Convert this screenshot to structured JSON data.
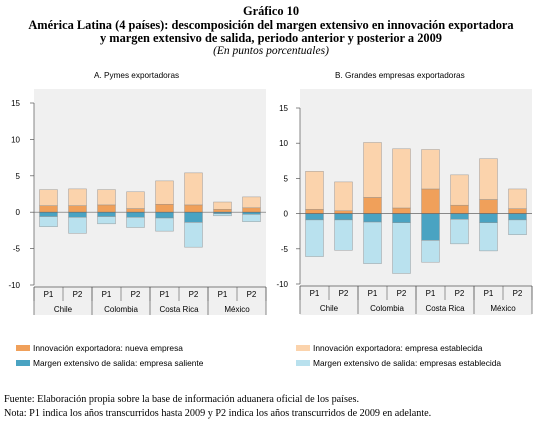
{
  "figure": {
    "heading": "Gráfico 10",
    "title_line1": "América Latina (4 países): descomposición del margen extensivo en innovación exportadora",
    "title_line2": "y margen extensivo de salida, periodo anterior y posterior a 2009",
    "units": "(En puntos porcentuales)",
    "source": "Fuente: Elaboración propia sobre la base de información aduanera oficial de los países.",
    "note": "Nota: P1 indica los años transcurridos hasta 2009 y P2 indica los años transcurridos de 2009 en adelante."
  },
  "colors": {
    "innovacion_nueva": "#f0a05a",
    "innovacion_establecida": "#fbd3ac",
    "margen_saliente": "#4aa3c2",
    "margen_establecida": "#b9e1ee",
    "panel_bg": "#f0f0f0"
  },
  "legend": [
    {
      "label": "Innovación exportadora: nueva empresa",
      "color_key": "innovacion_nueva"
    },
    {
      "label": "Innovación exportadora: empresa establecida",
      "color_key": "innovacion_establecida"
    },
    {
      "label": "Margen extensivo de salida: empresa saliente",
      "color_key": "margen_saliente"
    },
    {
      "label": "Margen extensivo de salida: empresas establecida",
      "color_key": "margen_establecida"
    }
  ],
  "chart_data": [
    {
      "type": "bar",
      "stacked": true,
      "title": "A.    Pymes exportadoras",
      "ylim": [
        -10,
        15
      ],
      "yticks": [
        "15",
        "10",
        "5",
        "0",
        "-5",
        "-10"
      ],
      "categories": [
        "P1",
        "P2",
        "P1",
        "P2",
        "P1",
        "P2",
        "P1",
        "P2"
      ],
      "groups": [
        "Chile",
        "Colombia",
        "Costa Rica",
        "México"
      ],
      "series": [
        {
          "name": "Innovación exportadora: nueva empresa",
          "values": [
            0.9,
            0.9,
            1.0,
            0.5,
            1.1,
            1.0,
            0.4,
            0.6
          ]
        },
        {
          "name": "Innovación exportadora: empresa establecida",
          "values": [
            2.2,
            2.3,
            2.1,
            2.3,
            3.2,
            4.4,
            1.0,
            1.5
          ]
        },
        {
          "name": "Margen extensivo de salida: empresa saliente",
          "values": [
            -0.6,
            -0.7,
            -0.6,
            -0.7,
            -0.8,
            -1.4,
            -0.2,
            -0.3
          ]
        },
        {
          "name": "Margen extensivo de salida: empresas establecida",
          "values": [
            -1.4,
            -2.2,
            -1.0,
            -1.4,
            -1.8,
            -3.4,
            -0.3,
            -1.0
          ]
        }
      ]
    },
    {
      "type": "bar",
      "stacked": true,
      "title": "B.    Grandes empresas exportadoras",
      "ylim": [
        -10,
        15
      ],
      "yticks": [
        "15",
        "10",
        "5",
        "0",
        "-5",
        "-10"
      ],
      "categories": [
        "P1",
        "P2",
        "P1",
        "P2",
        "P1",
        "P2",
        "P1",
        "P2"
      ],
      "groups": [
        "Chile",
        "Colombia",
        "Costa Rica",
        "México"
      ],
      "series": [
        {
          "name": "Innovación exportadora: nueva empresa",
          "values": [
            0.6,
            0.4,
            2.3,
            0.8,
            3.5,
            1.2,
            2.0,
            0.7
          ]
        },
        {
          "name": "Innovación exportadora: empresa establecida",
          "values": [
            5.4,
            4.1,
            7.8,
            8.4,
            5.6,
            4.3,
            5.8,
            2.8
          ]
        },
        {
          "name": "Margen extensivo de salida: empresa saliente",
          "values": [
            -0.9,
            -0.9,
            -1.2,
            -1.3,
            -3.8,
            -0.8,
            -1.3,
            -0.9
          ]
        },
        {
          "name": "Margen extensivo de salida: empresas establecida",
          "values": [
            -5.2,
            -4.3,
            -5.9,
            -7.2,
            -3.1,
            -3.5,
            -4.0,
            -2.1
          ]
        }
      ]
    }
  ]
}
